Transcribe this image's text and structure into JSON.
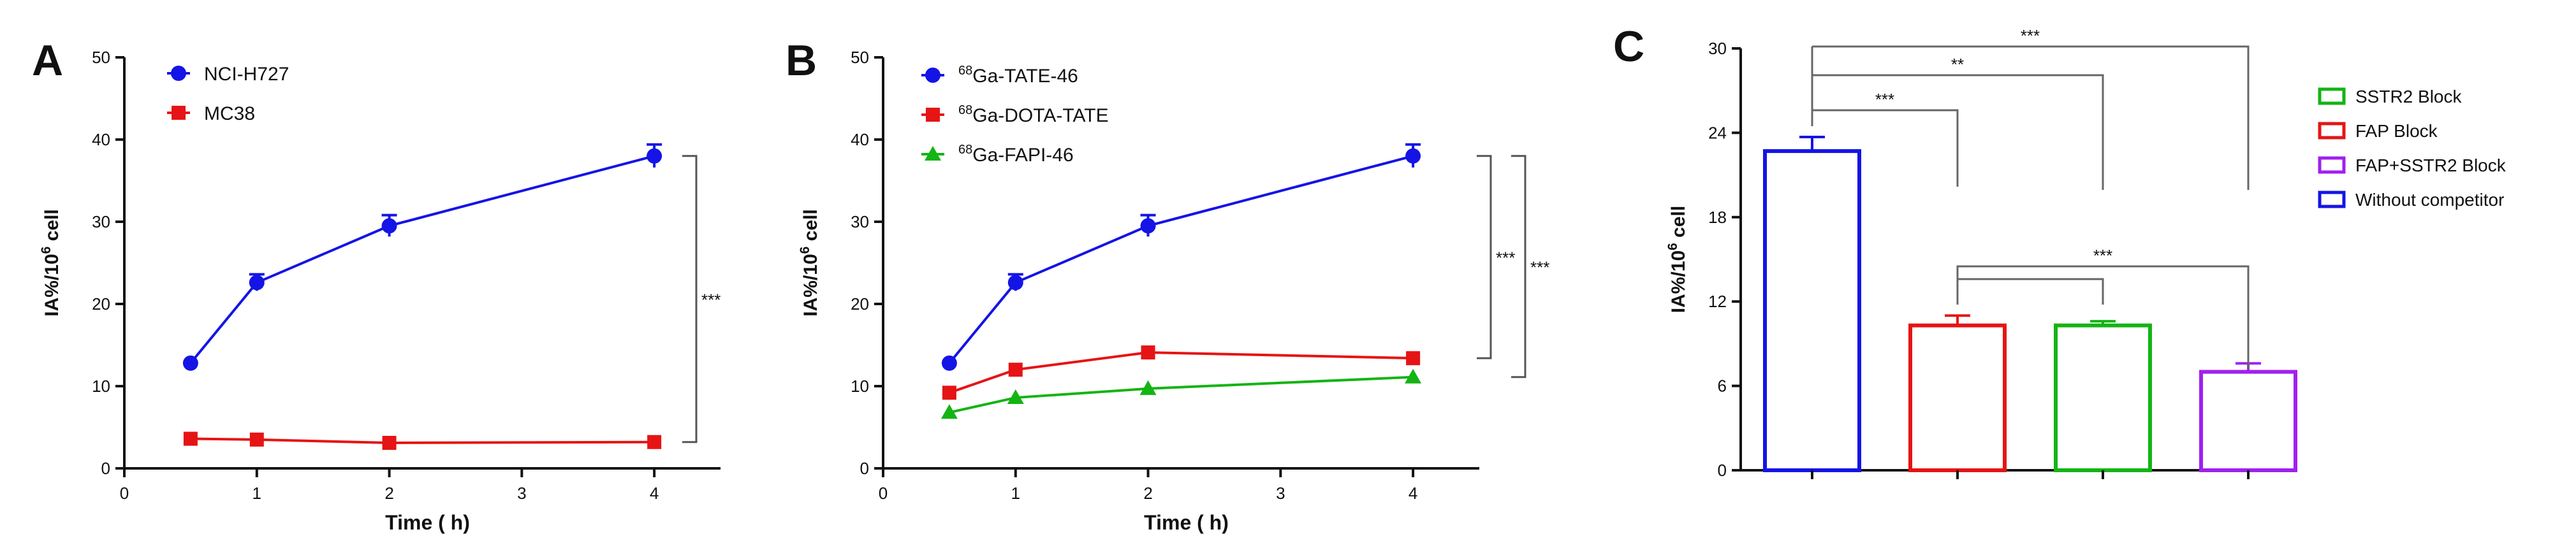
{
  "panels": {
    "A": {
      "letter": "A"
    },
    "B": {
      "letter": "B"
    },
    "C": {
      "letter": "C"
    }
  },
  "chart_data": [
    {
      "id": "A",
      "type": "line",
      "xlabel": "Time ( h)",
      "ylabel": "IA%/10^6 cell",
      "xlim": [
        0,
        4.5
      ],
      "ylim": [
        0,
        50
      ],
      "xticks": [
        0,
        1,
        2,
        3,
        4
      ],
      "yticks": [
        0,
        10,
        20,
        30,
        40,
        50
      ],
      "legend_position": "top-left",
      "series": [
        {
          "name": "NCI-H727",
          "color": "#1414e6",
          "marker": "circle",
          "x": [
            0.5,
            1,
            2,
            4
          ],
          "y": [
            12.8,
            22.6,
            29.5,
            38.0
          ],
          "err": [
            0.4,
            1.0,
            1.3,
            1.4
          ]
        },
        {
          "name": "MC38",
          "color": "#e61414",
          "marker": "square",
          "x": [
            0.5,
            1,
            2,
            4
          ],
          "y": [
            3.6,
            3.5,
            3.1,
            3.2
          ],
          "err": [
            0.2,
            0.2,
            0.2,
            0.2
          ]
        }
      ],
      "annotations": [
        {
          "text": "***",
          "y1": 38.0,
          "y2": 3.2
        }
      ]
    },
    {
      "id": "B",
      "type": "line",
      "xlabel": "Time ( h)",
      "ylabel": "IA%/10^6 cell",
      "xlim": [
        0,
        4.5
      ],
      "ylim": [
        0,
        50
      ],
      "xticks": [
        0,
        1,
        2,
        3,
        4
      ],
      "yticks": [
        0,
        10,
        20,
        30,
        40,
        50
      ],
      "legend_position": "top-left",
      "series": [
        {
          "name": "Ga-TATE-46",
          "superscript": "68",
          "color": "#1414e6",
          "marker": "circle",
          "x": [
            0.5,
            1,
            2,
            4
          ],
          "y": [
            12.8,
            22.6,
            29.5,
            38.0
          ],
          "err": [
            0.4,
            1.0,
            1.3,
            1.4
          ]
        },
        {
          "name": "Ga-DOTA-TATE",
          "superscript": "68",
          "color": "#e61414",
          "marker": "square",
          "x": [
            0.5,
            1,
            2,
            4
          ],
          "y": [
            9.2,
            12.0,
            14.1,
            13.4
          ],
          "err": [
            0.3,
            0.4,
            0.4,
            0.4
          ]
        },
        {
          "name": "Ga-FAPI-46",
          "superscript": "68",
          "color": "#14b414",
          "marker": "triangle",
          "x": [
            0.5,
            1,
            2,
            4
          ],
          "y": [
            6.8,
            8.6,
            9.7,
            11.1
          ],
          "err": [
            0.2,
            0.3,
            0.3,
            0.4
          ]
        }
      ],
      "annotations": [
        {
          "text": "***",
          "y1": 38.0,
          "y2": 13.4
        },
        {
          "text": "***",
          "y1": 38.0,
          "y2": 11.1
        }
      ]
    },
    {
      "id": "C",
      "type": "bar",
      "ylabel": "IA%/10^6 cell",
      "ylim": [
        0,
        30
      ],
      "yticks": [
        0,
        6,
        12,
        18,
        24,
        30
      ],
      "legend_position": "top-right",
      "categories": [
        "Without competitor",
        "FAP Block",
        "SSTR2 Block",
        "FAP+SSTR2 Block"
      ],
      "values": [
        22.7,
        10.3,
        10.3,
        7.0
      ],
      "errors": [
        1.0,
        0.7,
        0.3,
        0.6
      ],
      "colors": [
        "#1414e6",
        "#e61414",
        "#14b414",
        "#a020f0"
      ],
      "legend": [
        {
          "name": "SSTR2 Block",
          "color": "#14b414"
        },
        {
          "name": "FAP Block",
          "color": "#e61414"
        },
        {
          "name": "FAP+SSTR2 Block",
          "color": "#a020f0"
        },
        {
          "name": "Without competitor",
          "color": "#1414e6"
        }
      ],
      "significance": [
        {
          "from": 0,
          "to": 1,
          "text": "***"
        },
        {
          "from": 0,
          "to": 2,
          "text": "**"
        },
        {
          "from": 0,
          "to": 3,
          "text": "***"
        },
        {
          "from": 1,
          "to": 2,
          "text": ""
        },
        {
          "from": 1,
          "to": 3,
          "text": "***"
        }
      ]
    }
  ]
}
